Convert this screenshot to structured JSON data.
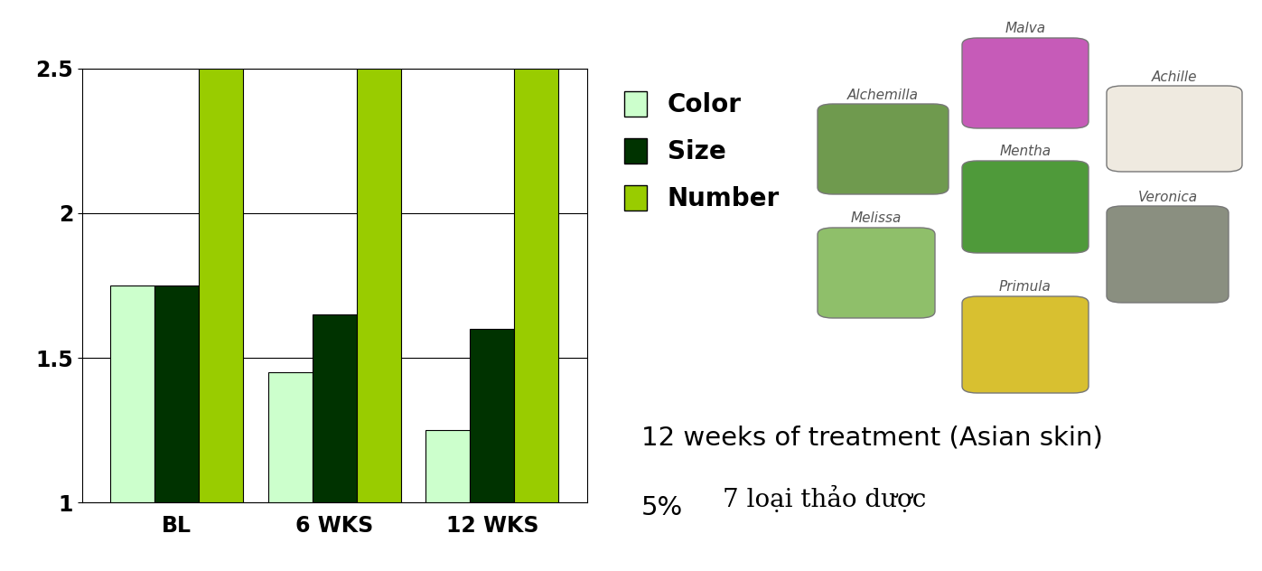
{
  "chart_data": {
    "type": "bar",
    "categories": [
      "BL",
      "6 WKS",
      "12 WKS"
    ],
    "series": [
      {
        "name": "Color",
        "color": "#ccffcc",
        "values": [
          1.75,
          1.45,
          1.25
        ]
      },
      {
        "name": "Size",
        "color": "#003300",
        "values": [
          1.75,
          1.65,
          1.6
        ]
      },
      {
        "name": "Number",
        "color": "#99cc00",
        "values": [
          2.5,
          2.5,
          2.5
        ]
      }
    ],
    "ylim": [
      1,
      2.5
    ],
    "yticks": [
      1,
      1.5,
      2,
      2.5
    ],
    "grid": true,
    "legend": "upper left",
    "plants": [
      "Malva",
      "Alchemilla",
      "Achille",
      "Mentha",
      "Melissa",
      "Veronica",
      "Primula"
    ],
    "annotations": [
      "12 weeks of treatment (Asian skin)",
      "5%",
      "7 loại thảo dược"
    ]
  }
}
